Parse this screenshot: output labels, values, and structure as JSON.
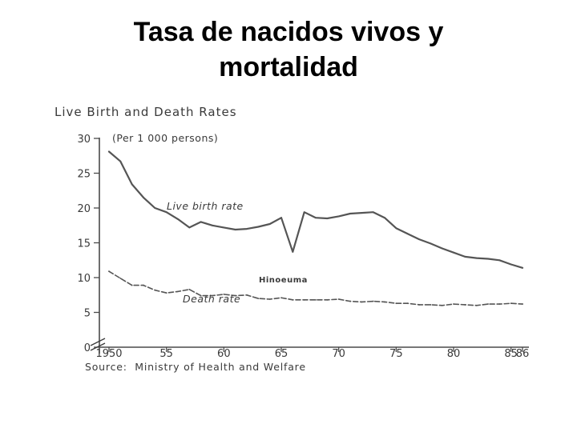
{
  "slide": {
    "title_line1": "Tasa de nacidos vivos y",
    "title_line2": "mortalidad"
  },
  "chart_data": {
    "type": "line",
    "title": "Live Birth and Death Rates",
    "unit_note": "(Per 1 000 persons)",
    "source": "Source:  Ministry of Health and Welfare",
    "xlim": [
      1950,
      1986
    ],
    "ylim": [
      0,
      30
    ],
    "axis_break": true,
    "x_ticks": [
      1950,
      1955,
      1960,
      1965,
      1970,
      1975,
      1980,
      1985,
      1986
    ],
    "x_tick_labels": [
      "1950",
      "55",
      "60",
      "65",
      "70",
      "75",
      "80",
      "85",
      "86"
    ],
    "y_ticks": [
      0,
      5,
      10,
      15,
      20,
      25,
      30
    ],
    "y_tick_labels": [
      "0",
      "5",
      "10",
      "15",
      "20",
      "25",
      "30"
    ],
    "annotation": "Hinoeuma",
    "series": [
      {
        "name": "Live birth rate",
        "style": "solid",
        "color": "#555555",
        "x": [
          1950,
          1951,
          1952,
          1953,
          1954,
          1955,
          1956,
          1957,
          1958,
          1959,
          1960,
          1961,
          1962,
          1963,
          1964,
          1965,
          1966,
          1967,
          1968,
          1969,
          1970,
          1971,
          1972,
          1973,
          1974,
          1975,
          1976,
          1977,
          1978,
          1979,
          1980,
          1981,
          1982,
          1983,
          1984,
          1985,
          1986
        ],
        "y": [
          28.1,
          26.7,
          23.4,
          21.5,
          20.0,
          19.4,
          18.4,
          17.2,
          18.0,
          17.5,
          17.2,
          16.9,
          17.0,
          17.3,
          17.7,
          18.6,
          13.7,
          19.4,
          18.6,
          18.5,
          18.8,
          19.2,
          19.3,
          19.4,
          18.6,
          17.1,
          16.3,
          15.5,
          14.9,
          14.2,
          13.6,
          13.0,
          12.8,
          12.7,
          12.5,
          11.9,
          11.4
        ]
      },
      {
        "name": "Death rate",
        "style": "dashed",
        "color": "#555555",
        "x": [
          1950,
          1951,
          1952,
          1953,
          1954,
          1955,
          1956,
          1957,
          1958,
          1959,
          1960,
          1961,
          1962,
          1963,
          1964,
          1965,
          1966,
          1967,
          1968,
          1969,
          1970,
          1971,
          1972,
          1973,
          1974,
          1975,
          1976,
          1977,
          1978,
          1979,
          1980,
          1981,
          1982,
          1983,
          1984,
          1985,
          1986
        ],
        "y": [
          10.9,
          9.9,
          8.9,
          8.9,
          8.2,
          7.8,
          8.0,
          8.3,
          7.4,
          7.4,
          7.6,
          7.4,
          7.5,
          7.0,
          6.9,
          7.1,
          6.8,
          6.8,
          6.8,
          6.8,
          6.9,
          6.6,
          6.5,
          6.6,
          6.5,
          6.3,
          6.3,
          6.1,
          6.1,
          6.0,
          6.2,
          6.1,
          6.0,
          6.2,
          6.2,
          6.3,
          6.2
        ]
      }
    ]
  }
}
